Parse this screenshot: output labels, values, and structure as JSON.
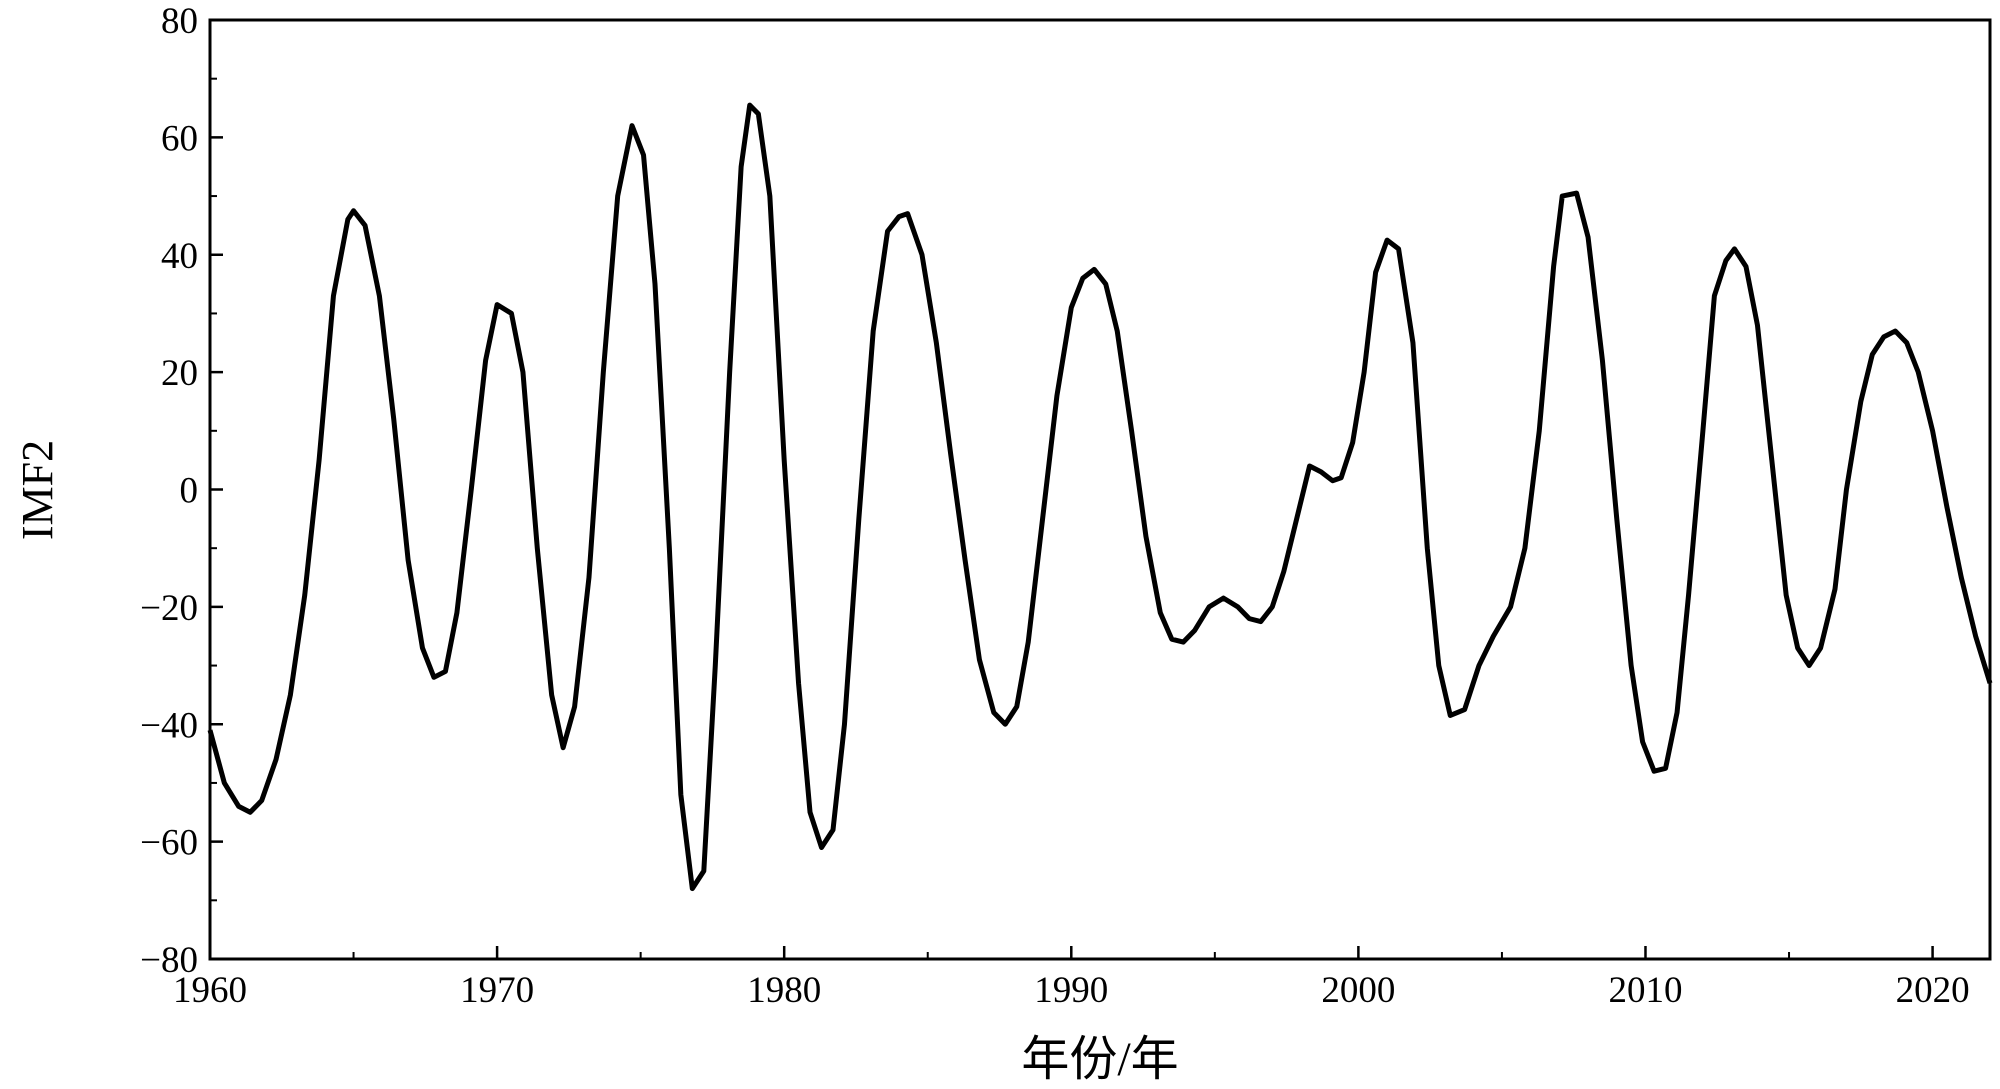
{
  "chart_data": {
    "type": "line",
    "xlabel": "年份/年",
    "ylabel": "IMF2",
    "xlim": [
      1960,
      2022
    ],
    "ylim": [
      -80,
      80
    ],
    "xticks": [
      1960,
      1970,
      1980,
      1990,
      2000,
      2010,
      2020
    ],
    "yticks": [
      {
        "value": -80,
        "label": "−80"
      },
      {
        "value": -60,
        "label": "−60"
      },
      {
        "value": -40,
        "label": "−40"
      },
      {
        "value": -20,
        "label": "−20"
      },
      0,
      20,
      40,
      60,
      80
    ],
    "grid": false,
    "series": [
      {
        "color": "#000000",
        "x": [
          1960.0,
          1960.5,
          1961.0,
          1961.4,
          1961.8,
          1962.3,
          1962.8,
          1963.3,
          1963.8,
          1964.3,
          1964.8,
          1965.0,
          1965.4,
          1965.9,
          1966.4,
          1966.9,
          1967.4,
          1967.8,
          1968.2,
          1968.6,
          1969.1,
          1969.6,
          1970.0,
          1970.5,
          1970.9,
          1971.4,
          1971.9,
          1972.3,
          1972.7,
          1973.2,
          1973.7,
          1974.2,
          1974.7,
          1975.1,
          1975.5,
          1976.0,
          1976.4,
          1976.8,
          1977.2,
          1977.6,
          1978.1,
          1978.5,
          1978.8,
          1979.1,
          1979.5,
          1980.0,
          1980.5,
          1980.9,
          1981.3,
          1981.7,
          1982.1,
          1982.6,
          1983.1,
          1983.6,
          1984.0,
          1984.3,
          1984.8,
          1985.3,
          1985.8,
          1986.3,
          1986.8,
          1987.3,
          1987.7,
          1988.1,
          1988.5,
          1989.0,
          1989.5,
          1990.0,
          1990.4,
          1990.8,
          1991.2,
          1991.6,
          1992.1,
          1992.6,
          1993.1,
          1993.5,
          1993.9,
          1994.3,
          1994.8,
          1995.3,
          1995.8,
          1996.2,
          1996.6,
          1997.0,
          1997.4,
          1997.9,
          1998.3,
          1998.7,
          1999.1,
          1999.4,
          1999.8,
          2000.2,
          2000.6,
          2001.0,
          2001.4,
          2001.9,
          2002.4,
          2002.8,
          2003.2,
          2003.7,
          2004.2,
          2004.7,
          2005.3,
          2005.8,
          2006.3,
          2006.8,
          2007.1,
          2007.6,
          2008.0,
          2008.5,
          2009.0,
          2009.5,
          2009.9,
          2010.3,
          2010.7,
          2011.1,
          2011.5,
          2012.0,
          2012.4,
          2012.8,
          2013.1,
          2013.5,
          2013.9,
          2014.4,
          2014.9,
          2015.3,
          2015.7,
          2016.1,
          2016.6,
          2017.0,
          2017.5,
          2017.9,
          2018.3,
          2018.7,
          2019.1,
          2019.5,
          2020.0,
          2020.5,
          2021.0,
          2021.5,
          2022.0
        ],
        "values": [
          -41,
          -50,
          -54,
          -55,
          -53,
          -46,
          -35,
          -18,
          5,
          33,
          46,
          47.5,
          45,
          33,
          12,
          -12,
          -27,
          -32,
          -31,
          -21,
          0,
          22,
          31.5,
          30,
          20,
          -10,
          -35,
          -44,
          -37,
          -15,
          20,
          50,
          62,
          57,
          35,
          -10,
          -52,
          -68,
          -65,
          -30,
          20,
          55,
          65.5,
          64,
          50,
          5,
          -33,
          -55,
          -61,
          -58,
          -40,
          -5,
          27,
          44,
          46.5,
          47,
          40,
          25,
          6,
          -12,
          -29,
          -38,
          -40,
          -37,
          -26,
          -5,
          16,
          31,
          36,
          37.5,
          35,
          27,
          10,
          -8,
          -21,
          -25.5,
          -26,
          -24,
          -20,
          -18.5,
          -20,
          -22,
          -22.5,
          -20,
          -14,
          -4,
          4,
          3,
          1.5,
          2,
          8,
          20,
          37,
          42.5,
          41,
          25,
          -10,
          -30,
          -38.5,
          -37.5,
          -30,
          -25,
          -20,
          -10,
          10,
          38,
          50,
          50.5,
          43,
          22,
          -5,
          -30,
          -43,
          -48,
          -47.5,
          -38,
          -18,
          10,
          33,
          39,
          41,
          38,
          28,
          5,
          -18,
          -27,
          -30,
          -27,
          -17,
          0,
          15,
          23,
          26,
          27,
          25,
          20,
          10,
          -3,
          -15,
          -25,
          -33
        ]
      }
    ]
  }
}
